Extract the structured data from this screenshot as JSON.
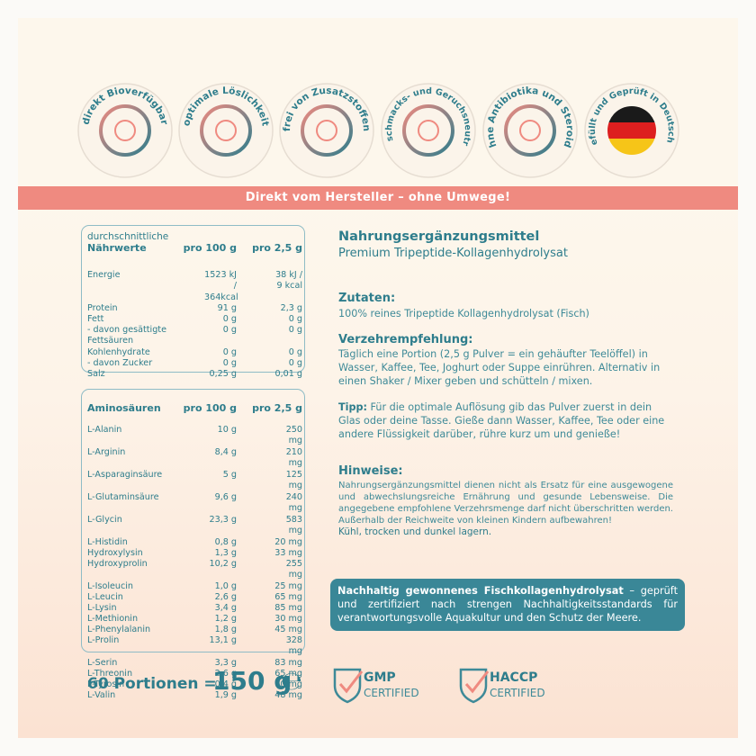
{
  "badges": [
    "direkt Bioverfügbar",
    "optimale Löslichkeit",
    "frei von Zusatzstoffen",
    "Geschmacks- und Geruchsneutral",
    "ohne Antibiotika und Steroide",
    "Abgefüllt und Geprüft in Deutschland"
  ],
  "banner": "Direkt vom Hersteller – ohne Umwege!",
  "nutrition": {
    "header": {
      "label_top": "durchschnittliche",
      "label": "Nährwerte",
      "col1": "pro 100 g",
      "col2": "pro 2,5 g"
    },
    "rows": [
      [
        "Energie",
        "1523 kJ / 364kcal",
        "38 kJ / 9 kcal"
      ],
      [
        "Protein",
        "91 g",
        "2,3 g"
      ],
      [
        "Fett",
        "0 g",
        "0 g"
      ],
      [
        "- davon gesättigte Fettsäuren",
        "0 g",
        "0 g"
      ],
      [
        "Kohlenhydrate",
        "0 g",
        "0 g"
      ],
      [
        "- davon Zucker",
        "0 g",
        "0 g"
      ],
      [
        "Salz",
        "0,25 g",
        "0,01 g"
      ]
    ]
  },
  "amino": {
    "header": {
      "label": "Aminosäuren",
      "col1": "pro 100 g",
      "col2": "pro 2,5 g"
    },
    "rows": [
      [
        "L-Alanin",
        "10 g",
        "250 mg"
      ],
      [
        "L-Arginin",
        "8,4 g",
        "210 mg"
      ],
      [
        "L-Asparaginsäure",
        "5 g",
        "125 mg"
      ],
      [
        "L-Glutaminsäure",
        "9,6 g",
        "240 mg"
      ],
      [
        "L-Glycin",
        "23,3 g",
        "583 mg"
      ],
      [
        "L-Histidin",
        "0,8 g",
        "20 mg"
      ],
      [
        "Hydroxylysin",
        "1,3 g",
        "33 mg"
      ],
      [
        "Hydroxyprolin",
        "10,2 g",
        "255 mg"
      ],
      [
        "L-Isoleucin",
        "1,0 g",
        "25 mg"
      ],
      [
        "L-Leucin",
        "2,6 g",
        "65 mg"
      ],
      [
        "L-Lysin",
        "3,4 g",
        "85 mg"
      ],
      [
        "L-Methionin",
        "1,2 g",
        "30 mg"
      ],
      [
        "L-Phenylalanin",
        "1,8 g",
        "45 mg"
      ],
      [
        "L-Prolin",
        "13,1 g",
        "328 mg"
      ],
      [
        "L-Serin",
        "3,3 g",
        "83 mg"
      ],
      [
        "L-Threonin",
        "2,6 g",
        "65 mg"
      ],
      [
        "L-Tyrosin",
        "0,4 g",
        "10 mg"
      ],
      [
        "L-Valin",
        "1,9 g",
        "48 mg"
      ]
    ]
  },
  "product": {
    "title": "Nahrungsergänzungsmittel",
    "subtitle": "Premium Tripeptide-Kollagenhydrolysat"
  },
  "ingredients": {
    "heading": "Zutaten:",
    "text": "100% reines Tripeptide Kollagenhydrolysat (Fisch)"
  },
  "usage": {
    "heading": "Verzehrempfehlung:",
    "text": "Täglich eine Portion (2,5 g Pulver = ein gehäufter Teelöffel) in Wasser, Kaffee, Tee, Joghurt oder Suppe einrühren. Alternativ in einen Shaker / Mixer geben und schütteln / mixen."
  },
  "tip": {
    "label": "Tipp:",
    "text": "Für die optimale Auflösung gib das Pulver zuerst in dein Glas oder deine Tasse. Gieße dann Wasser, Kaffee, Tee oder eine andere Flüssigkeit darüber, rühre kurz um und genieße!"
  },
  "notes": {
    "heading": "Hinweise:",
    "text": "Nahrungsergänzungsmittel dienen nicht als Ersatz für eine ausgewogene und abwechslungsreiche Ernährung und gesunde Lebensweise. Die angegebene empfohlene Verzehrsmenge darf nicht überschritten werden. Außerhalb der Reichweite von kleinen Kindern aufbewahren!",
    "storage": "Kühl, trocken und dunkel lagern."
  },
  "info": {
    "bold": "Nachhaltig gewonnenes Fischkollagenhydrolysat",
    "text": "– geprüft und zertifiziert nach strengen Nachhaltigkeitsstandards für verantwortungsvolle Aquakultur und den Schutz der Meere."
  },
  "footer": {
    "portions": "60 Portionen =",
    "weight": "150 g",
    "estimate": "℮",
    "gmp": "GMP",
    "gmp_sub": "CERTIFIED",
    "haccp": "HACCP",
    "haccp_sub": "CERTIFIED"
  }
}
